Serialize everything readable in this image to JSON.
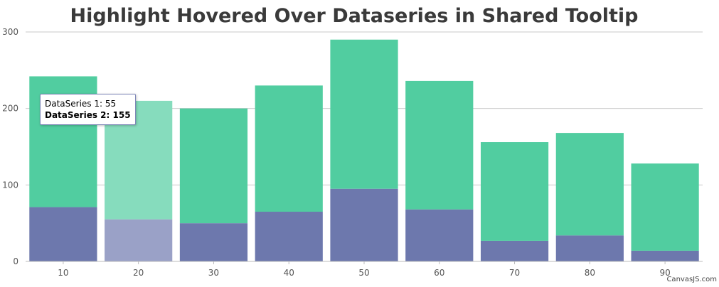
{
  "chart_data": {
    "type": "bar",
    "stacked": true,
    "title": "Highlight Hovered Over Dataseries in Shared Tooltip",
    "categories": [
      "10",
      "20",
      "30",
      "40",
      "50",
      "60",
      "70",
      "80",
      "90"
    ],
    "series": [
      {
        "name": "DataSeries 1",
        "color": "#6d78ad",
        "values": [
          71,
          55,
          50,
          65,
          95,
          68,
          27,
          34,
          14
        ]
      },
      {
        "name": "DataSeries 2",
        "color": "#51cda0",
        "values": [
          171,
          155,
          150,
          165,
          195,
          168,
          129,
          134,
          114
        ]
      }
    ],
    "ylim": [
      0,
      300
    ],
    "yticks": [
      0,
      100,
      200,
      300
    ],
    "grid": true,
    "highlight_index": 1,
    "highlight_colors": [
      "#9aa1c7",
      "#86dcbd"
    ]
  },
  "tooltip": {
    "line1": "DataSeries 1: 55",
    "line2": "DataSeries 2: 155"
  },
  "credit": "CanvasJS.com"
}
